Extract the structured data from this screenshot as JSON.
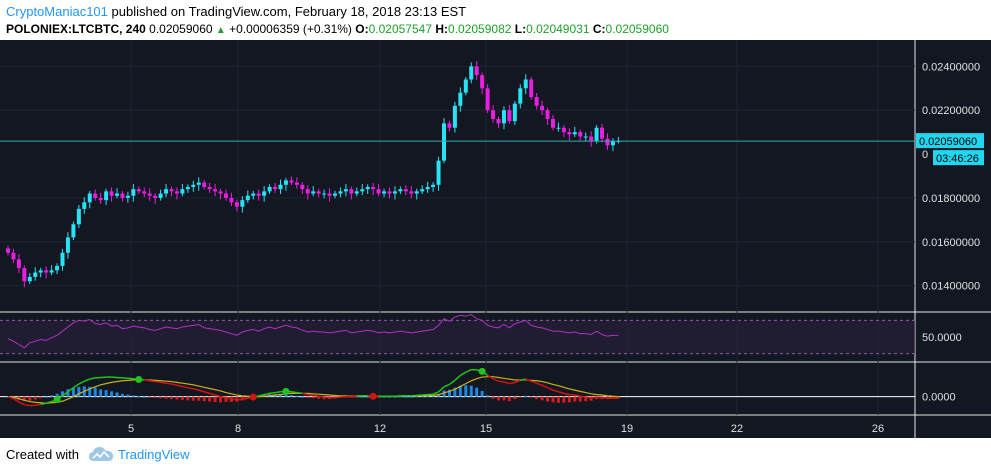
{
  "header": {
    "author": "CryptoManiac101",
    "published": " published on TradingView.com, February 18, 2018 23:13 EST",
    "symbol": "POLONIEX:LTCBTC, 240",
    "price": "0.02059060",
    "change_arrow": "▲",
    "change": "+0.00006359 (+0.31%)",
    "o_label": "O:",
    "o_value": "0.02057547",
    "h_label": "H:",
    "h_value": "0.02059082",
    "l_label": "L:",
    "l_value": "0.02049031",
    "c_label": "C:",
    "c_value": "0.02059060"
  },
  "footer": {
    "created_with": "Created with",
    "brand": "TradingView"
  },
  "colors": {
    "background": "#131722",
    "up": "#26e3f5",
    "down": "#e91ee0",
    "rsi": "#b32fc9",
    "macd": "#21c41a",
    "signal": "#c8b215",
    "signal_down": "#d11414",
    "hist_pos": "#1e88e5",
    "hist_neg": "#d01e1e",
    "last_price_tag": "#21d7f0"
  },
  "chart_data": [
    {
      "type": "candlestick",
      "x_ticks": [
        "5",
        "8",
        "12",
        "15",
        "19",
        "22",
        "26"
      ],
      "y_ticks": [
        "0.02400000",
        "0.02200000",
        "0.01800000",
        "0.01600000",
        "0.01400000"
      ],
      "ylim": [
        0.0128,
        0.0252
      ],
      "last_price_label": "0.02059060",
      "countdown_label": "03:46:26",
      "hidden_label": "0",
      "series": [
        {
          "name": "LTCBTC",
          "close": [
            0.0155,
            0.0152,
            0.0148,
            0.0142,
            0.0144,
            0.0146,
            0.0147,
            0.0146,
            0.0147,
            0.0149,
            0.0155,
            0.0162,
            0.0168,
            0.0175,
            0.0178,
            0.0182,
            0.018,
            0.0179,
            0.0183,
            0.0181,
            0.0182,
            0.018,
            0.0181,
            0.0184,
            0.0183,
            0.0182,
            0.0181,
            0.018,
            0.0182,
            0.0184,
            0.0183,
            0.0182,
            0.0184,
            0.0185,
            0.0186,
            0.0187,
            0.0185,
            0.0184,
            0.0183,
            0.0182,
            0.018,
            0.0178,
            0.0176,
            0.0179,
            0.0181,
            0.0182,
            0.0181,
            0.0183,
            0.0185,
            0.0184,
            0.0186,
            0.0188,
            0.0187,
            0.0186,
            0.0184,
            0.0182,
            0.0183,
            0.0182,
            0.0182,
            0.0181,
            0.0182,
            0.0183,
            0.0184,
            0.0182,
            0.0183,
            0.0184,
            0.0185,
            0.0184,
            0.0182,
            0.0183,
            0.0182,
            0.0183,
            0.0184,
            0.0183,
            0.0182,
            0.0183,
            0.0184,
            0.0185,
            0.0186,
            0.0197,
            0.0214,
            0.0212,
            0.0222,
            0.0228,
            0.0234,
            0.024,
            0.0236,
            0.023,
            0.022,
            0.0216,
            0.0214,
            0.022,
            0.0215,
            0.0223,
            0.023,
            0.0234,
            0.0226,
            0.0222,
            0.022,
            0.0216,
            0.0212,
            0.0212,
            0.021,
            0.0209,
            0.021,
            0.0208,
            0.0208,
            0.0206,
            0.0212,
            0.0207,
            0.0204,
            0.0206,
            0.0206
          ]
        }
      ],
      "title": "",
      "xlabel": "",
      "ylabel": ""
    },
    {
      "type": "line",
      "y_ticks": [
        "50.0000"
      ],
      "ylim": [
        20,
        80
      ],
      "bands": [
        70,
        30
      ],
      "series": [
        {
          "values": [
            48,
            45,
            41,
            37,
            43,
            45,
            47,
            46,
            49,
            52,
            57,
            62,
            67,
            70,
            69,
            71,
            66,
            65,
            67,
            63,
            64,
            60,
            61,
            63,
            62,
            61,
            59,
            58,
            60,
            62,
            61,
            60,
            62,
            63,
            64,
            65,
            61,
            60,
            59,
            58,
            56,
            54,
            52,
            56,
            58,
            59,
            57,
            60,
            62,
            60,
            62,
            64,
            62,
            61,
            58,
            56,
            57,
            56,
            56,
            55,
            56,
            57,
            58,
            55,
            56,
            57,
            58,
            57,
            55,
            56,
            55,
            56,
            57,
            56,
            55,
            56,
            57,
            58,
            59,
            64,
            72,
            69,
            74,
            76,
            75,
            77,
            72,
            70,
            64,
            62,
            61,
            65,
            61,
            66,
            68,
            70,
            64,
            62,
            61,
            59,
            57,
            57,
            56,
            55,
            56,
            54,
            54,
            53,
            57,
            53,
            51,
            52,
            52
          ]
        }
      ]
    },
    {
      "type": "line",
      "y_ticks": [
        "0.0000"
      ],
      "ylim": [
        -0.00045,
        0.00085
      ],
      "series": [
        {
          "values": [
            0,
            -5e-05,
            -0.00013,
            -0.0002,
            -0.00022,
            -0.00021,
            -0.00019,
            -0.00016,
            -0.00012,
            -7e-05,
            2e-05,
            0.00012,
            0.00022,
            0.00031,
            0.00038,
            0.00043,
            0.00046,
            0.00047,
            0.00048,
            0.00048,
            0.00047,
            0.00046,
            0.00045,
            0.00044,
            0.00042,
            0.00041,
            0.00039,
            0.00037,
            0.00035,
            0.00033,
            0.00031,
            0.00028,
            0.00025,
            0.00022,
            0.00019,
            0.00016,
            0.00012,
            8e-05,
            4e-05,
            0.0,
            -3e-05,
            -6e-05,
            -8e-05,
            -7e-05,
            -4e-05,
            -1e-05,
            2e-05,
            5e-05,
            8e-05,
            0.0001,
            0.00012,
            0.00013,
            0.00012,
            0.0001,
            8e-05,
            5e-05,
            3e-05,
            1e-05,
            -1e-05,
            -2e-05,
            -2e-05,
            -1e-05,
            0,
            1e-05,
            1e-05,
            2e-05,
            2e-05,
            1e-05,
            0,
            1e-05,
            1e-05,
            1e-05,
            2e-05,
            2e-05,
            2e-05,
            3e-05,
            4e-05,
            5e-05,
            6e-05,
            0.00012,
            0.00024,
            0.0003,
            0.0004,
            0.00052,
            0.0006,
            0.00066,
            0.00066,
            0.00062,
            0.00052,
            0.00044,
            0.00038,
            0.00036,
            0.00032,
            0.00035,
            0.0004,
            0.00043,
            0.00038,
            0.00033,
            0.00028,
            0.00022,
            0.00016,
            0.00012,
            8e-05,
            5e-05,
            4e-05,
            1e-05,
            -1e-05,
            -3e-05,
            -1e-05,
            -2e-05,
            -4e-05,
            -4e-05,
            -4e-05
          ]
        },
        {
          "values": [
            0,
            -2e-05,
            -5e-05,
            -9e-05,
            -0.00012,
            -0.00014,
            -0.00015,
            -0.00016,
            -0.00015,
            -0.00014,
            -0.00011,
            -6e-05,
            0.0,
            7e-05,
            0.00013,
            0.00019,
            0.00024,
            0.00029,
            0.00032,
            0.00035,
            0.00037,
            0.00039,
            0.0004,
            0.00041,
            0.00041,
            0.00041,
            0.00041,
            0.0004,
            0.00039,
            0.00038,
            0.00037,
            0.00035,
            0.00033,
            0.00031,
            0.00029,
            0.00026,
            0.00023,
            0.0002,
            0.00017,
            0.00014,
            0.0001,
            7e-05,
            4e-05,
            2e-05,
            1e-05,
            0.0,
            0.0,
            1e-05,
            2e-05,
            4e-05,
            5e-05,
            7e-05,
            8e-05,
            8e-05,
            8e-05,
            8e-05,
            7e-05,
            6e-05,
            5e-05,
            4e-05,
            3e-05,
            2e-05,
            2e-05,
            2e-05,
            2e-05,
            2e-05,
            2e-05,
            2e-05,
            1e-05,
            1e-05,
            1e-05,
            1e-05,
            1e-05,
            2e-05,
            2e-05,
            2e-05,
            2e-05,
            3e-05,
            3e-05,
            5e-05,
            9e-05,
            0.00013,
            0.00018,
            0.00025,
            0.00032,
            0.00039,
            0.00044,
            0.00048,
            0.00049,
            0.00049,
            0.00047,
            0.00045,
            0.00043,
            0.00041,
            0.00041,
            0.00041,
            0.0004,
            0.00039,
            0.00037,
            0.00034,
            0.0003,
            0.00027,
            0.00023,
            0.00019,
            0.00016,
            0.00013,
            0.0001,
            7e-05,
            5e-05,
            4e-05,
            2e-05,
            1e-05,
            0.0
          ]
        }
      ],
      "cross_points": [
        9,
        24,
        45,
        51,
        67,
        87
      ]
    }
  ]
}
